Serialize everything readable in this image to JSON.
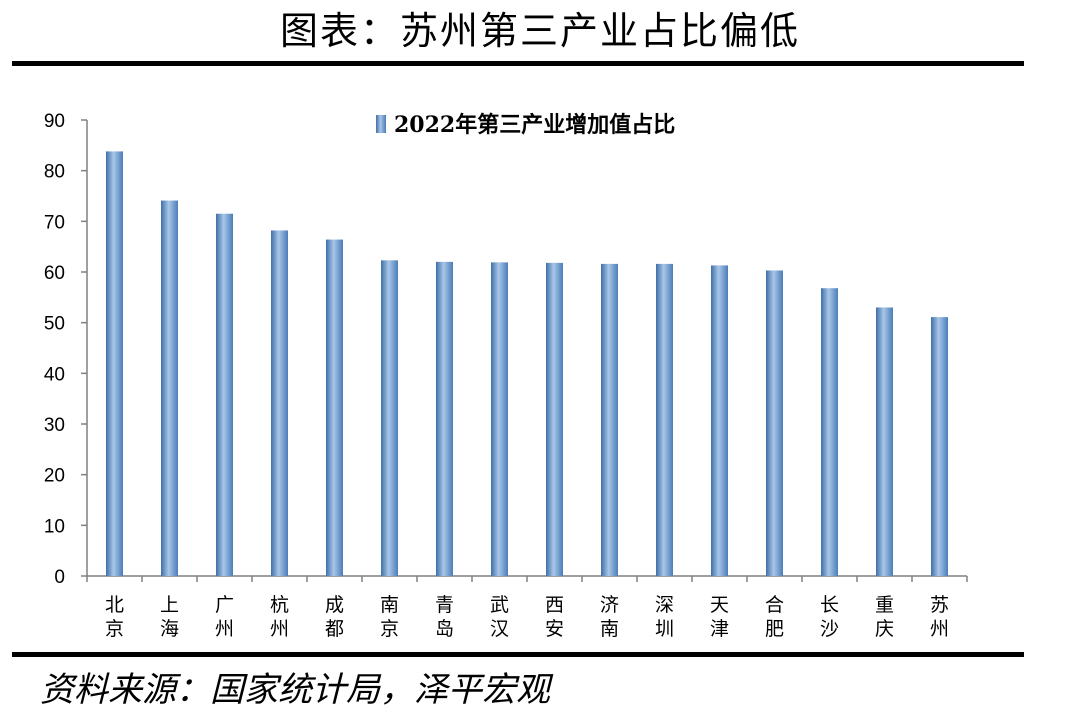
{
  "header": {
    "title": "图表：苏州第三产业占比偏低"
  },
  "footer": {
    "source": "资料来源：国家统计局，泽平宏观"
  },
  "colors": {
    "bar": "#5b8ec9",
    "bar_dark": "#3f6fa8",
    "bar_light": "#a9c6e8",
    "axis": "#808080"
  },
  "chart_data": {
    "type": "bar",
    "title": "",
    "xlabel": "",
    "ylabel": "",
    "ylim": [
      0,
      90
    ],
    "yticks": [
      0,
      10,
      20,
      30,
      40,
      50,
      60,
      70,
      80,
      90
    ],
    "grid": false,
    "legend_position": "top-center",
    "categories": [
      "北京",
      "上海",
      "广州",
      "杭州",
      "成都",
      "南京",
      "青岛",
      "武汉",
      "西安",
      "济南",
      "深圳",
      "天津",
      "合肥",
      "长沙",
      "重庆",
      "苏州"
    ],
    "series": [
      {
        "name": "2022年第三产业增加值占比",
        "values": [
          83.8,
          74.1,
          71.5,
          68.2,
          66.4,
          62.3,
          62.0,
          61.9,
          61.8,
          61.6,
          61.6,
          61.3,
          60.3,
          56.8,
          53.0,
          51.1
        ]
      }
    ]
  }
}
